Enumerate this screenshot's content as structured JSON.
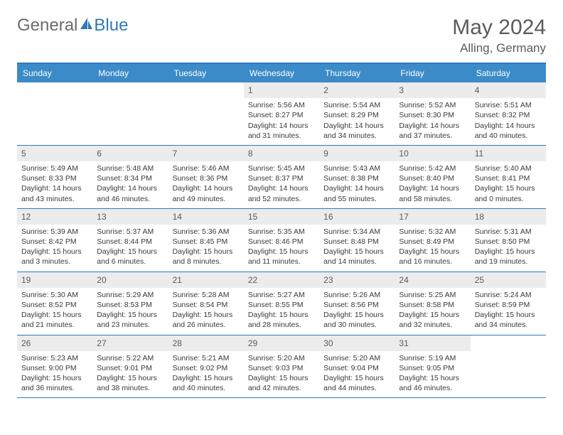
{
  "brand": {
    "part1": "General",
    "part2": "Blue"
  },
  "title": "May 2024",
  "location": "Alling, Germany",
  "colors": {
    "header_bg": "#3b8bc8",
    "border": "#2f79b8",
    "daynum_bg": "#ececec",
    "text": "#3a3a3a",
    "brand_gray": "#6a6a6a",
    "brand_blue": "#2f79b8"
  },
  "day_headers": [
    "Sunday",
    "Monday",
    "Tuesday",
    "Wednesday",
    "Thursday",
    "Friday",
    "Saturday"
  ],
  "weeks": [
    [
      {
        "empty": true
      },
      {
        "empty": true
      },
      {
        "empty": true
      },
      {
        "n": "1",
        "sr": "Sunrise: 5:56 AM",
        "ss": "Sunset: 8:27 PM",
        "d1": "Daylight: 14 hours",
        "d2": "and 31 minutes."
      },
      {
        "n": "2",
        "sr": "Sunrise: 5:54 AM",
        "ss": "Sunset: 8:29 PM",
        "d1": "Daylight: 14 hours",
        "d2": "and 34 minutes."
      },
      {
        "n": "3",
        "sr": "Sunrise: 5:52 AM",
        "ss": "Sunset: 8:30 PM",
        "d1": "Daylight: 14 hours",
        "d2": "and 37 minutes."
      },
      {
        "n": "4",
        "sr": "Sunrise: 5:51 AM",
        "ss": "Sunset: 8:32 PM",
        "d1": "Daylight: 14 hours",
        "d2": "and 40 minutes."
      }
    ],
    [
      {
        "n": "5",
        "sr": "Sunrise: 5:49 AM",
        "ss": "Sunset: 8:33 PM",
        "d1": "Daylight: 14 hours",
        "d2": "and 43 minutes."
      },
      {
        "n": "6",
        "sr": "Sunrise: 5:48 AM",
        "ss": "Sunset: 8:34 PM",
        "d1": "Daylight: 14 hours",
        "d2": "and 46 minutes."
      },
      {
        "n": "7",
        "sr": "Sunrise: 5:46 AM",
        "ss": "Sunset: 8:36 PM",
        "d1": "Daylight: 14 hours",
        "d2": "and 49 minutes."
      },
      {
        "n": "8",
        "sr": "Sunrise: 5:45 AM",
        "ss": "Sunset: 8:37 PM",
        "d1": "Daylight: 14 hours",
        "d2": "and 52 minutes."
      },
      {
        "n": "9",
        "sr": "Sunrise: 5:43 AM",
        "ss": "Sunset: 8:38 PM",
        "d1": "Daylight: 14 hours",
        "d2": "and 55 minutes."
      },
      {
        "n": "10",
        "sr": "Sunrise: 5:42 AM",
        "ss": "Sunset: 8:40 PM",
        "d1": "Daylight: 14 hours",
        "d2": "and 58 minutes."
      },
      {
        "n": "11",
        "sr": "Sunrise: 5:40 AM",
        "ss": "Sunset: 8:41 PM",
        "d1": "Daylight: 15 hours",
        "d2": "and 0 minutes."
      }
    ],
    [
      {
        "n": "12",
        "sr": "Sunrise: 5:39 AM",
        "ss": "Sunset: 8:42 PM",
        "d1": "Daylight: 15 hours",
        "d2": "and 3 minutes."
      },
      {
        "n": "13",
        "sr": "Sunrise: 5:37 AM",
        "ss": "Sunset: 8:44 PM",
        "d1": "Daylight: 15 hours",
        "d2": "and 6 minutes."
      },
      {
        "n": "14",
        "sr": "Sunrise: 5:36 AM",
        "ss": "Sunset: 8:45 PM",
        "d1": "Daylight: 15 hours",
        "d2": "and 8 minutes."
      },
      {
        "n": "15",
        "sr": "Sunrise: 5:35 AM",
        "ss": "Sunset: 8:46 PM",
        "d1": "Daylight: 15 hours",
        "d2": "and 11 minutes."
      },
      {
        "n": "16",
        "sr": "Sunrise: 5:34 AM",
        "ss": "Sunset: 8:48 PM",
        "d1": "Daylight: 15 hours",
        "d2": "and 14 minutes."
      },
      {
        "n": "17",
        "sr": "Sunrise: 5:32 AM",
        "ss": "Sunset: 8:49 PM",
        "d1": "Daylight: 15 hours",
        "d2": "and 16 minutes."
      },
      {
        "n": "18",
        "sr": "Sunrise: 5:31 AM",
        "ss": "Sunset: 8:50 PM",
        "d1": "Daylight: 15 hours",
        "d2": "and 19 minutes."
      }
    ],
    [
      {
        "n": "19",
        "sr": "Sunrise: 5:30 AM",
        "ss": "Sunset: 8:52 PM",
        "d1": "Daylight: 15 hours",
        "d2": "and 21 minutes."
      },
      {
        "n": "20",
        "sr": "Sunrise: 5:29 AM",
        "ss": "Sunset: 8:53 PM",
        "d1": "Daylight: 15 hours",
        "d2": "and 23 minutes."
      },
      {
        "n": "21",
        "sr": "Sunrise: 5:28 AM",
        "ss": "Sunset: 8:54 PM",
        "d1": "Daylight: 15 hours",
        "d2": "and 26 minutes."
      },
      {
        "n": "22",
        "sr": "Sunrise: 5:27 AM",
        "ss": "Sunset: 8:55 PM",
        "d1": "Daylight: 15 hours",
        "d2": "and 28 minutes."
      },
      {
        "n": "23",
        "sr": "Sunrise: 5:26 AM",
        "ss": "Sunset: 8:56 PM",
        "d1": "Daylight: 15 hours",
        "d2": "and 30 minutes."
      },
      {
        "n": "24",
        "sr": "Sunrise: 5:25 AM",
        "ss": "Sunset: 8:58 PM",
        "d1": "Daylight: 15 hours",
        "d2": "and 32 minutes."
      },
      {
        "n": "25",
        "sr": "Sunrise: 5:24 AM",
        "ss": "Sunset: 8:59 PM",
        "d1": "Daylight: 15 hours",
        "d2": "and 34 minutes."
      }
    ],
    [
      {
        "n": "26",
        "sr": "Sunrise: 5:23 AM",
        "ss": "Sunset: 9:00 PM",
        "d1": "Daylight: 15 hours",
        "d2": "and 36 minutes."
      },
      {
        "n": "27",
        "sr": "Sunrise: 5:22 AM",
        "ss": "Sunset: 9:01 PM",
        "d1": "Daylight: 15 hours",
        "d2": "and 38 minutes."
      },
      {
        "n": "28",
        "sr": "Sunrise: 5:21 AM",
        "ss": "Sunset: 9:02 PM",
        "d1": "Daylight: 15 hours",
        "d2": "and 40 minutes."
      },
      {
        "n": "29",
        "sr": "Sunrise: 5:20 AM",
        "ss": "Sunset: 9:03 PM",
        "d1": "Daylight: 15 hours",
        "d2": "and 42 minutes."
      },
      {
        "n": "30",
        "sr": "Sunrise: 5:20 AM",
        "ss": "Sunset: 9:04 PM",
        "d1": "Daylight: 15 hours",
        "d2": "and 44 minutes."
      },
      {
        "n": "31",
        "sr": "Sunrise: 5:19 AM",
        "ss": "Sunset: 9:05 PM",
        "d1": "Daylight: 15 hours",
        "d2": "and 46 minutes."
      },
      {
        "empty": true
      }
    ]
  ]
}
